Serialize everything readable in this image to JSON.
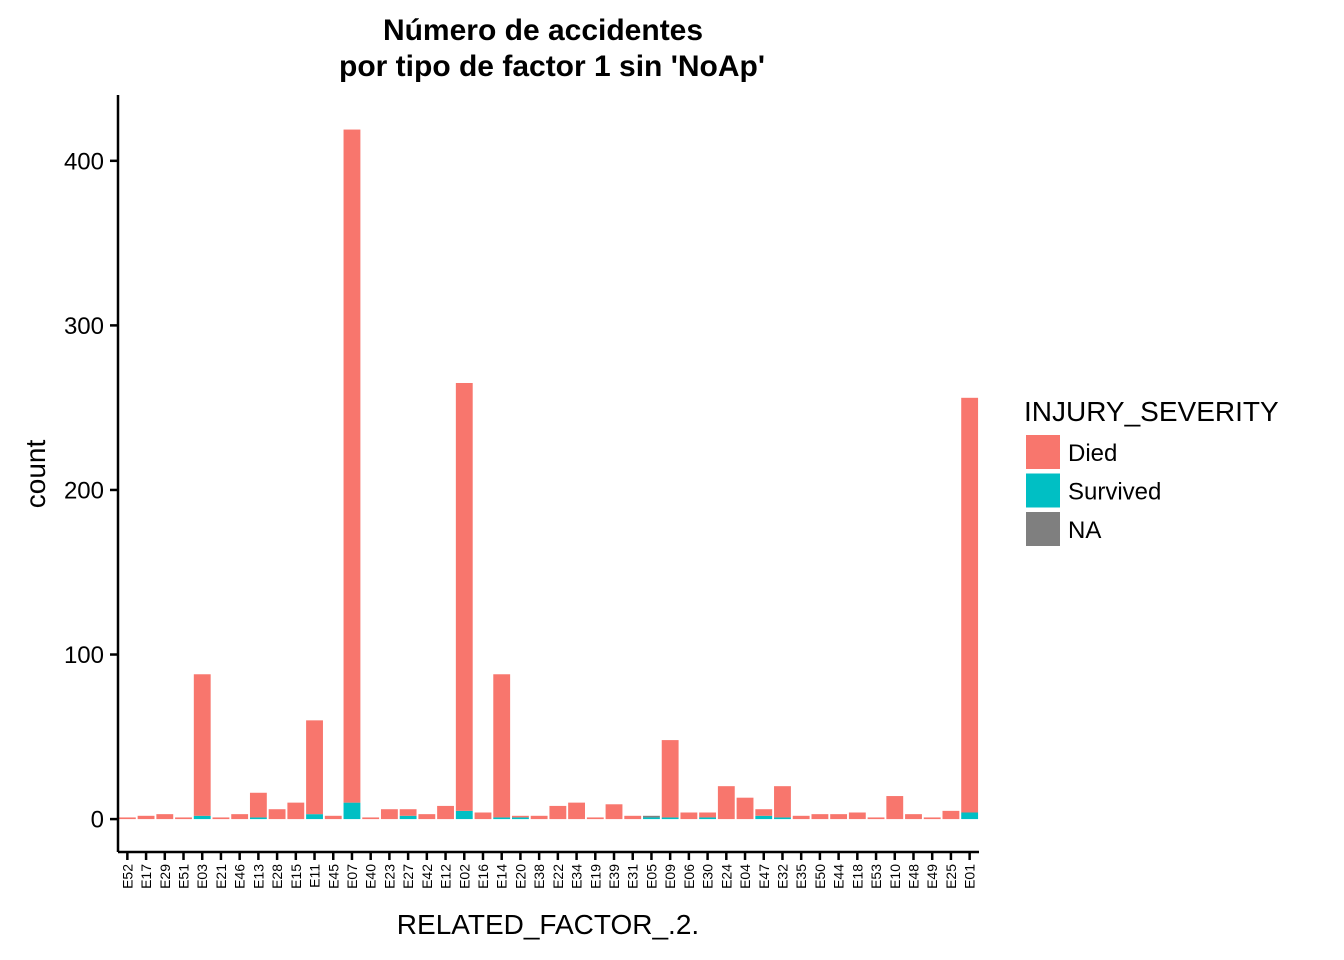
{
  "chart_data": {
    "type": "bar",
    "stacked": true,
    "title_lines": [
      "Número de accidentes",
      "por tipo de factor 1 sin 'NoAp'"
    ],
    "xlabel": "RELATED_FACTOR_.2.",
    "ylabel": "count",
    "ylim": [
      -20,
      440
    ],
    "yticks": [
      0,
      100,
      200,
      300,
      400
    ],
    "grid": false,
    "legend": {
      "title": "INJURY_SEVERITY",
      "position": "right",
      "entries": [
        "Died",
        "Survived",
        "NA"
      ]
    },
    "colors": {
      "Died": "#F8766D",
      "Survived": "#00BFC4",
      "NA": "#7F7F7F"
    },
    "categories": [
      "E52",
      "E17",
      "E29",
      "E51",
      "E03",
      "E21",
      "E46",
      "E13",
      "E28",
      "E15",
      "E11",
      "E45",
      "E07",
      "E40",
      "E23",
      "E27",
      "E42",
      "E12",
      "E02",
      "E16",
      "E14",
      "E20",
      "E38",
      "E22",
      "E34",
      "E19",
      "E39",
      "E31",
      "E05",
      "E09",
      "E06",
      "E30",
      "E24",
      "E04",
      "E47",
      "E32",
      "E35",
      "E50",
      "E44",
      "E18",
      "E53",
      "E10",
      "E48",
      "E49",
      "E25",
      "E01"
    ],
    "series": [
      {
        "name": "Survived",
        "values": [
          0,
          0,
          0,
          0,
          2,
          0,
          0,
          1,
          0,
          0,
          3,
          0,
          10,
          0,
          0,
          2,
          0,
          0,
          5,
          0,
          1,
          1,
          0,
          0,
          0,
          0,
          0,
          0,
          1,
          1,
          0,
          1,
          0,
          0,
          2,
          1,
          0,
          0,
          0,
          0,
          0,
          0,
          0,
          0,
          0,
          4
        ]
      },
      {
        "name": "Died",
        "values": [
          1,
          2,
          3,
          1,
          86,
          1,
          3,
          15,
          6,
          10,
          57,
          2,
          409,
          1,
          6,
          4,
          3,
          8,
          260,
          4,
          87,
          1,
          2,
          8,
          10,
          1,
          9,
          2,
          0,
          47,
          4,
          3,
          20,
          13,
          4,
          19,
          2,
          3,
          3,
          4,
          1,
          14,
          3,
          1,
          5,
          252
        ]
      },
      {
        "name": "NA",
        "values": [
          0,
          0,
          0,
          0,
          0,
          0,
          0,
          0,
          0,
          0,
          0,
          0,
          0,
          0,
          0,
          0,
          0,
          0,
          0,
          0,
          0,
          0,
          0,
          0,
          0,
          0,
          0,
          0,
          1,
          0,
          0,
          0,
          0,
          0,
          0,
          0,
          0,
          0,
          0,
          0,
          0,
          0,
          0,
          0,
          0,
          0
        ]
      }
    ]
  }
}
